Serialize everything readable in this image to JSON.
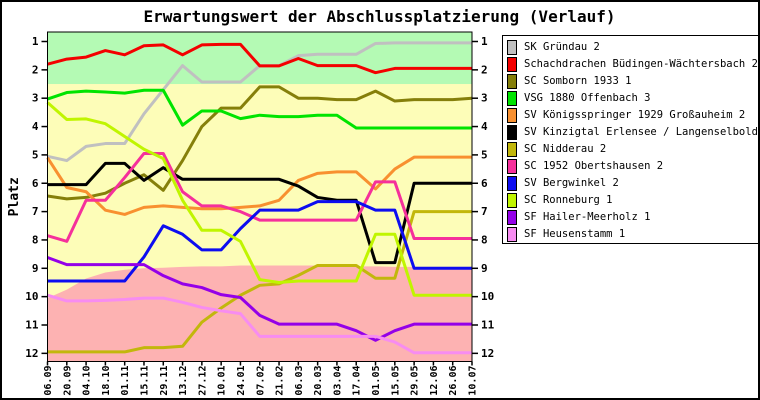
{
  "title": "Erwartungswert der Abschlussplatzierung (Verlauf)",
  "ylabel": "Platz",
  "chart_data": {
    "type": "line",
    "title": "Erwartungswert der Abschlussplatzierung (Verlauf)",
    "xlabel": "",
    "ylabel": "Platz",
    "y_axis_inverted": true,
    "ylim": [
      0.67,
      12.3
    ],
    "y_ticks": [
      1,
      2,
      3,
      4,
      5,
      6,
      7,
      8,
      9,
      10,
      11,
      12
    ],
    "grid": false,
    "legend_position": "outside-right",
    "x_tick_labels": [
      "06.09",
      "20.09",
      "04.10",
      "18.10",
      "01.11",
      "15.11",
      "29.11",
      "13.12",
      "27.12",
      "10.01",
      "24.01",
      "07.02",
      "21.02",
      "06.03",
      "20.03",
      "03.04",
      "17.04",
      "01.05",
      "15.05",
      "29.05",
      "12.06",
      "26.06",
      "10.07"
    ],
    "bands": {
      "promotion_zone": {
        "color": "#B4FAB4",
        "from_place": 0.67,
        "to_place": 2.5
      },
      "midfield_zone": {
        "color": "#FDFDB8",
        "from_place": 2.5,
        "to_place": "relegation_boundary"
      },
      "relegation_zone": {
        "color": "#FDB2B2",
        "top_boundary_places": [
          10.05,
          9.75,
          9.36,
          9.15,
          9.05,
          9.0,
          8.98,
          8.95,
          8.93,
          8.93,
          8.9,
          8.9,
          8.9,
          8.9,
          8.9,
          8.93,
          8.93,
          8.93,
          8.95,
          8.95,
          8.95,
          8.95,
          8.95
        ]
      }
    },
    "series": [
      {
        "name": "SK Gründau 2",
        "color": "#C0C0C0",
        "places": [
          5.05,
          5.2,
          4.7,
          4.6,
          4.6,
          3.55,
          2.7,
          1.85,
          2.43,
          2.43,
          2.43,
          1.85,
          1.85,
          1.5,
          1.45,
          1.45,
          1.45,
          1.07,
          1.05,
          1.05,
          1.05,
          1.05,
          1.05
        ]
      },
      {
        "name": "Schachdrachen Büdingen-Wächtersbach 2",
        "color": "#F40000",
        "places": [
          1.8,
          1.62,
          1.55,
          1.32,
          1.47,
          1.15,
          1.12,
          1.47,
          1.12,
          1.1,
          1.1,
          1.86,
          1.86,
          1.6,
          1.85,
          1.85,
          1.85,
          2.1,
          1.95,
          1.95,
          1.95,
          1.95,
          1.95
        ]
      },
      {
        "name": "SC Somborn 1933 1",
        "color": "#857F0A",
        "places": [
          6.45,
          6.55,
          6.5,
          6.35,
          6.0,
          5.7,
          6.25,
          5.2,
          4.0,
          3.35,
          3.35,
          2.6,
          2.6,
          3.0,
          3.0,
          3.05,
          3.05,
          2.75,
          3.1,
          3.05,
          3.05,
          3.05,
          3.0
        ]
      },
      {
        "name": "VSG 1880 Offenbach 3",
        "color": "#00E400",
        "places": [
          3.03,
          2.8,
          2.75,
          2.78,
          2.82,
          2.72,
          2.72,
          3.95,
          3.45,
          3.45,
          3.72,
          3.6,
          3.65,
          3.65,
          3.6,
          3.6,
          4.05,
          4.05,
          4.05,
          4.05,
          4.05,
          4.05,
          4.05
        ]
      },
      {
        "name": "SV Königsspringer 1929 Großauheim 2",
        "color": "#F89030",
        "places": [
          5.1,
          6.15,
          6.3,
          6.95,
          7.1,
          6.85,
          6.8,
          6.85,
          6.9,
          6.9,
          6.85,
          6.8,
          6.6,
          5.9,
          5.65,
          5.6,
          5.6,
          6.2,
          5.5,
          5.08,
          5.08,
          5.08,
          5.08
        ]
      },
      {
        "name": "SV Kinzigtal Erlensee / Langenselbold 2",
        "color": "#000000",
        "places": [
          6.05,
          6.05,
          6.05,
          5.3,
          5.3,
          5.9,
          5.45,
          5.86,
          5.86,
          5.86,
          5.86,
          5.86,
          5.86,
          6.1,
          6.5,
          6.6,
          6.6,
          8.8,
          8.8,
          6.0,
          6.0,
          6.0,
          6.0
        ]
      },
      {
        "name": "SC Nidderau 2",
        "color": "#C2B70B",
        "places": [
          11.95,
          11.95,
          11.95,
          11.95,
          11.95,
          11.8,
          11.8,
          11.75,
          10.9,
          10.4,
          9.95,
          9.6,
          9.55,
          9.25,
          8.9,
          8.9,
          8.9,
          9.35,
          9.35,
          7.0,
          7.0,
          7.0,
          7.0
        ]
      },
      {
        "name": "SC 1952 Obertshausen 2",
        "color": "#F5309B",
        "places": [
          7.85,
          8.05,
          6.6,
          6.6,
          5.8,
          4.95,
          4.95,
          6.3,
          6.8,
          6.8,
          7.0,
          7.3,
          7.3,
          7.3,
          7.3,
          7.3,
          7.3,
          5.95,
          5.95,
          7.95,
          7.95,
          7.95,
          7.95
        ]
      },
      {
        "name": "SV Bergwinkel 2",
        "color": "#0D0DF0",
        "places": [
          9.45,
          9.45,
          9.45,
          9.45,
          9.45,
          8.6,
          7.5,
          7.8,
          8.35,
          8.35,
          7.6,
          6.95,
          6.95,
          6.95,
          6.65,
          6.65,
          6.65,
          6.95,
          6.95,
          9.0,
          9.0,
          9.0,
          9.0
        ]
      },
      {
        "name": "SC Ronneburg 1",
        "color": "#C0F500",
        "places": [
          3.15,
          3.75,
          3.73,
          3.9,
          4.35,
          4.8,
          5.13,
          6.6,
          7.66,
          7.66,
          8.05,
          9.4,
          9.5,
          9.45,
          9.45,
          9.45,
          9.45,
          7.8,
          7.8,
          9.95,
          9.95,
          9.95,
          9.95
        ]
      },
      {
        "name": "SF Hailer-Meerholz 1",
        "color": "#9400E8",
        "places": [
          8.62,
          8.87,
          8.87,
          8.87,
          8.87,
          8.87,
          9.26,
          9.55,
          9.68,
          9.93,
          10.03,
          10.66,
          10.97,
          10.97,
          10.97,
          10.97,
          11.2,
          11.54,
          11.2,
          10.97,
          10.97,
          10.97,
          10.97
        ]
      },
      {
        "name": "SF Heusenstamm 1",
        "color": "#F78CF1",
        "places": [
          9.95,
          10.15,
          10.15,
          10.13,
          10.1,
          10.05,
          10.05,
          10.2,
          10.38,
          10.5,
          10.6,
          11.4,
          11.4,
          11.4,
          11.4,
          11.4,
          11.4,
          11.4,
          11.6,
          11.98,
          11.98,
          11.98,
          11.98
        ]
      }
    ],
    "axis_color": "#000000",
    "plot_background": "#FDFDB8"
  }
}
